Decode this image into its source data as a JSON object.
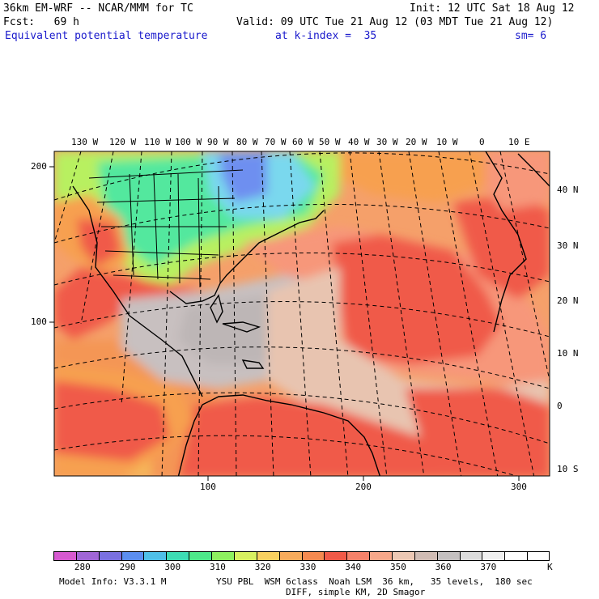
{
  "header": {
    "model": "36km EM-WRF -- NCAR/MMM for TC",
    "init": "Init: 12 UTC Sat 18 Aug 12",
    "fcst": "Fcst:   69 h",
    "valid": "Valid: 09 UTC Tue 21 Aug 12 (03 MDT Tue 21 Aug 12)",
    "field": "Equivalent potential temperature",
    "level": "at k-index =  35",
    "smooth": "sm= 6"
  },
  "map": {
    "lon_labels": [
      "130 W",
      "120 W",
      "110 W",
      "100 W",
      "90 W",
      "80 W",
      "70 W",
      "60 W",
      "50 W",
      "40 W",
      "30 W",
      "20 W",
      "10 W",
      "0",
      "10 E"
    ],
    "lat_labels": [
      "40 N",
      "30 N",
      "20 N",
      "10 N",
      "0",
      "10 S"
    ],
    "y_grid_labels": [
      "200",
      "100"
    ],
    "x_grid_labels": [
      "100",
      "200",
      "300"
    ],
    "palette": {
      "land_outline": "#000000",
      "cold": "#6e8ff0",
      "cool": "#7ad8ee",
      "green": "#52e89e",
      "lime": "#b8f060",
      "yellow": "#f8e060",
      "orange": "#f7a04f",
      "red": "#f05a4a",
      "salmon": "#f7977a",
      "tan": "#e8c4b0",
      "grey": "#c8c0c0"
    }
  },
  "colorbar": {
    "colors": [
      "#d65ad0",
      "#a066d6",
      "#7a70e0",
      "#5b8ef0",
      "#4fc0e8",
      "#3edcb4",
      "#4ee88a",
      "#8ef060",
      "#d8f060",
      "#f8d060",
      "#f7ab5c",
      "#f58a50",
      "#f05a48",
      "#f5826a",
      "#f7a88a",
      "#ecc8b4",
      "#d0bcb4",
      "#c4c0c0",
      "#dcdcdc",
      "#f0f0f0",
      "#ffffff",
      "#ffffff"
    ],
    "labels": [
      "280",
      "290",
      "300",
      "310",
      "320",
      "330",
      "340",
      "350",
      "360",
      "370"
    ],
    "unit": "K"
  },
  "footer": {
    "model_info": "Model Info: V3.3.1 M",
    "physics": "YSU PBL  WSM 6class  Noah LSM  36 km,   35 levels,  180 sec",
    "diff": "DIFF, simple KM, 2D Smagor"
  }
}
